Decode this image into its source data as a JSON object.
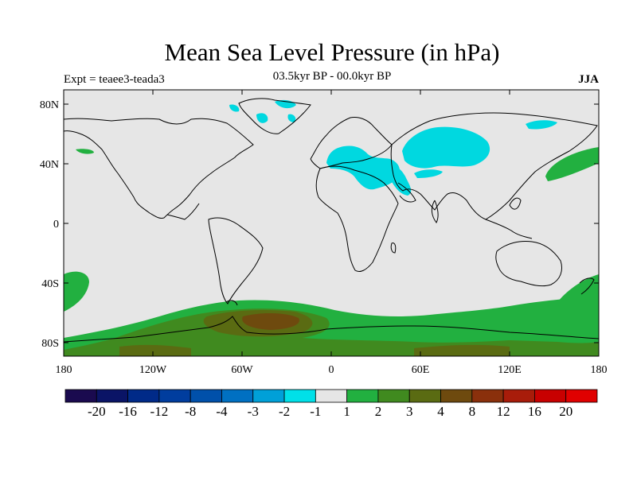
{
  "title": "Mean Sea Level Pressure (in hPa)",
  "experiment": "Expt = teaee3-teada3",
  "period": "03.5kyr BP - 00.0kyr BP",
  "season": "JJA",
  "lat_ticks": [
    "80N",
    "40N",
    "0",
    "40S",
    "80S"
  ],
  "lon_ticks": [
    "180",
    "120W",
    "60W",
    "0",
    "60E",
    "120E",
    "180"
  ],
  "colorbar": {
    "labels": [
      "-20",
      "-16",
      "-12",
      "-8",
      "-4",
      "-3",
      "-2",
      "-1",
      "1",
      "2",
      "3",
      "4",
      "8",
      "12",
      "16",
      "20"
    ],
    "colors": [
      "#1a0a4f",
      "#0a1466",
      "#002a88",
      "#003d9e",
      "#0050aa",
      "#0070c2",
      "#00a0d8",
      "#00e0e8",
      "#e6e6e6",
      "#22b040",
      "#408a1f",
      "#5a6b12",
      "#6e4a0e",
      "#8a300c",
      "#a81c0a",
      "#c80000",
      "#e00000"
    ]
  },
  "map_colors": {
    "background": "#e6e6e6",
    "neg_minus2": "#00d8e0",
    "pos_1": "#22b040",
    "pos_2": "#408a1f",
    "pos_3": "#5a6b12",
    "pos_4": "#6e4a0e"
  }
}
